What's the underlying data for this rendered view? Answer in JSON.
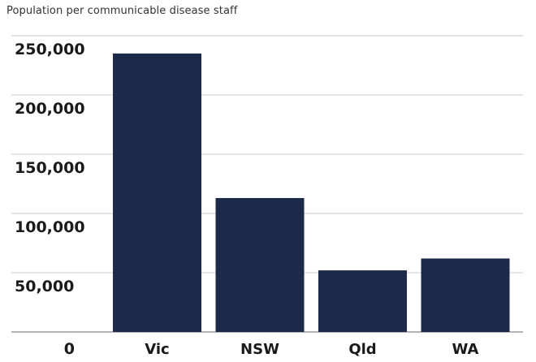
{
  "chart_data": {
    "type": "bar",
    "title": "Population per communicable disease staff",
    "xlabel": "",
    "ylabel": "",
    "categories": [
      "Vic",
      "NSW",
      "Qld",
      "WA"
    ],
    "values": [
      235000,
      113000,
      52000,
      62000
    ],
    "ylim": [
      0,
      250000
    ],
    "yticks": [
      0,
      50000,
      100000,
      150000,
      200000,
      250000
    ],
    "ytick_labels": [
      "0",
      "50,000",
      "100,000",
      "150,000",
      "200,000",
      "250,000"
    ],
    "grid": true,
    "legend": "none",
    "bar_color": "#1c2a4a",
    "grid_color": "#c8c8c8"
  }
}
